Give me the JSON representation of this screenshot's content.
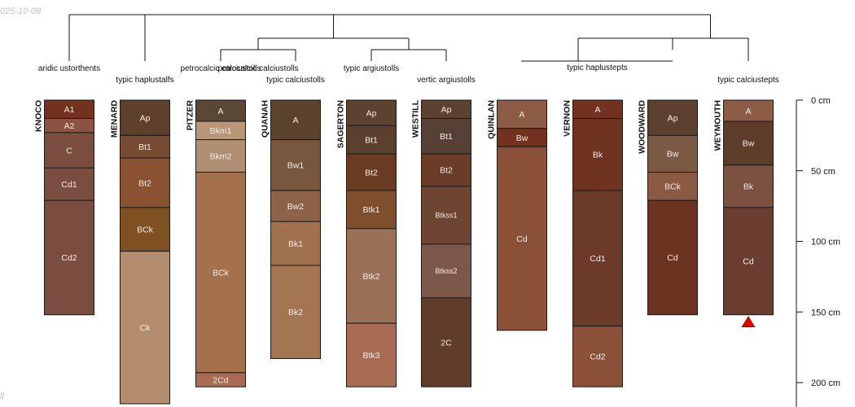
{
  "date_stamp": "025-10-08",
  "corner_text": "ll",
  "chart_data": {
    "type": "soil-profile-sketch",
    "depth_unit": "cm",
    "depth_axis": {
      "ticks": [
        0,
        50,
        100,
        150,
        200
      ],
      "range": [
        0,
        215
      ]
    },
    "profiles": [
      {
        "id": "KNOCO",
        "taxon": "aridic ustorthents",
        "horizons": [
          {
            "name": "A1",
            "top": 0,
            "bottom": 13,
            "color": "#72321f"
          },
          {
            "name": "A2",
            "top": 13,
            "bottom": 23,
            "color": "#8c5343"
          },
          {
            "name": "C",
            "top": 23,
            "bottom": 48,
            "color": "#7b4d40"
          },
          {
            "name": "Cd1",
            "top": 48,
            "bottom": 71,
            "color": "#7b4d40"
          },
          {
            "name": "Cd2",
            "top": 71,
            "bottom": 152,
            "color": "#7b4d40"
          }
        ]
      },
      {
        "id": "MENARD",
        "taxon": "typic haplustalfs",
        "horizons": [
          {
            "name": "Ap",
            "top": 0,
            "bottom": 25,
            "color": "#5f402c"
          },
          {
            "name": "Bt1",
            "top": 25,
            "bottom": 41,
            "color": "#784c33"
          },
          {
            "name": "Bt2",
            "top": 41,
            "bottom": 76,
            "color": "#8a5230"
          },
          {
            "name": "BCk",
            "top": 76,
            "bottom": 107,
            "color": "#7f5122"
          },
          {
            "name": "Ck",
            "top": 107,
            "bottom": 215,
            "color": "#b38d6e"
          }
        ]
      },
      {
        "id": "PITZER",
        "taxon": "petrocalcic calciustolls",
        "horizons": [
          {
            "name": "A",
            "top": 0,
            "bottom": 15,
            "color": "#5b4736"
          },
          {
            "name": "Bkm1",
            "top": 15,
            "bottom": 28,
            "color": "#b8967a"
          },
          {
            "name": "Bkm2",
            "top": 28,
            "bottom": 51,
            "color": "#ae8f74"
          },
          {
            "name": "BCk",
            "top": 51,
            "bottom": 193,
            "color": "#a5704c"
          },
          {
            "name": "2Cd",
            "top": 193,
            "bottom": 203,
            "color": "#a86c55"
          }
        ]
      },
      {
        "id": "QUANAH",
        "taxon": "typic calciustolls",
        "horizons": [
          {
            "name": "A",
            "top": 0,
            "bottom": 28,
            "color": "#5c432e"
          },
          {
            "name": "Bw1",
            "top": 28,
            "bottom": 64,
            "color": "#77573e"
          },
          {
            "name": "Bw2",
            "top": 64,
            "bottom": 86,
            "color": "#8d6248"
          },
          {
            "name": "Bk1",
            "top": 86,
            "bottom": 117,
            "color": "#a0714e"
          },
          {
            "name": "Bk2",
            "top": 117,
            "bottom": 183,
            "color": "#a37550"
          }
        ]
      },
      {
        "id": "SAGERTON",
        "taxon": "typic argiustolls",
        "horizons": [
          {
            "name": "Ap",
            "top": 0,
            "bottom": 18,
            "color": "#5d4232"
          },
          {
            "name": "Bt1",
            "top": 18,
            "bottom": 38,
            "color": "#5b4030"
          },
          {
            "name": "Bt2",
            "top": 38,
            "bottom": 64,
            "color": "#6b3c24"
          },
          {
            "name": "Btk1",
            "top": 64,
            "bottom": 91,
            "color": "#7f4e2d"
          },
          {
            "name": "Btk2",
            "top": 91,
            "bottom": 158,
            "color": "#9b7059"
          },
          {
            "name": "Btk3",
            "top": 158,
            "bottom": 203,
            "color": "#a86c55"
          }
        ]
      },
      {
        "id": "WESTILL",
        "taxon": "vertic argiustolls",
        "horizons": [
          {
            "name": "Ap",
            "top": 0,
            "bottom": 13,
            "color": "#5c4030"
          },
          {
            "name": "Bt1",
            "top": 13,
            "bottom": 38,
            "color": "#574035"
          },
          {
            "name": "Bt2",
            "top": 38,
            "bottom": 61,
            "color": "#6b3c27"
          },
          {
            "name": "Btkss1",
            "top": 61,
            "bottom": 102,
            "color": "#6e4533"
          },
          {
            "name": "Btkss2",
            "top": 102,
            "bottom": 140,
            "color": "#7b584a"
          },
          {
            "name": "2C",
            "top": 140,
            "bottom": 203,
            "color": "#5f3d2a"
          }
        ]
      },
      {
        "id": "QUINLAN",
        "taxon": "",
        "horizons": [
          {
            "name": "A",
            "top": 0,
            "bottom": 20,
            "color": "#8c5c47"
          },
          {
            "name": "Bw",
            "top": 20,
            "bottom": 33,
            "color": "#72321f"
          },
          {
            "name": "Cd",
            "top": 33,
            "bottom": 163,
            "color": "#8b5138"
          }
        ]
      },
      {
        "id": "VERNON",
        "taxon": "typic haplustepts",
        "horizons": [
          {
            "name": "A",
            "top": 0,
            "bottom": 13,
            "color": "#72321f"
          },
          {
            "name": "Bk",
            "top": 13,
            "bottom": 64,
            "color": "#6e3420"
          },
          {
            "name": "Cd1",
            "top": 64,
            "bottom": 160,
            "color": "#6b3a28"
          },
          {
            "name": "Cd2",
            "top": 160,
            "bottom": 203,
            "color": "#8b5138"
          }
        ]
      },
      {
        "id": "WOODWARD",
        "taxon": "",
        "horizons": [
          {
            "name": "Ap",
            "top": 0,
            "bottom": 25,
            "color": "#5d4030"
          },
          {
            "name": "Bw",
            "top": 25,
            "bottom": 51,
            "color": "#7b5a46"
          },
          {
            "name": "BCk",
            "top": 51,
            "bottom": 71,
            "color": "#8a5a44"
          },
          {
            "name": "Cd",
            "top": 71,
            "bottom": 152,
            "color": "#6b3420"
          }
        ]
      },
      {
        "id": "WEYMOUTH",
        "taxon": "typic calciustepts",
        "horizons": [
          {
            "name": "A",
            "top": 0,
            "bottom": 15,
            "color": "#8c5c47"
          },
          {
            "name": "Bw",
            "top": 15,
            "bottom": 46,
            "color": "#5e3c2a"
          },
          {
            "name": "Bk",
            "top": 46,
            "bottom": 76,
            "color": "#7c5140"
          },
          {
            "name": "Cd",
            "top": 76,
            "bottom": 152,
            "color": "#6b3c30"
          }
        ]
      }
    ],
    "taxon_groups": [
      {
        "label": "petrocalcic calciustolls",
        "profiles": [
          "PITZER",
          "QUANAH"
        ]
      },
      {
        "label": "typic haplustepts",
        "profiles": [
          "QUINLAN",
          "VERNON",
          "WOODWARD"
        ]
      }
    ],
    "dendrogram": {
      "groups": [
        {
          "members": [
            0,
            1
          ]
        },
        {
          "members": [
            2,
            3
          ]
        },
        {
          "members": [
            4,
            5
          ]
        },
        {
          "members": [
            8,
            9
          ]
        }
      ],
      "root_children": [
        "g0",
        "mid",
        "right"
      ],
      "mid_children": [
        "g1",
        "g2"
      ],
      "right_children": [
        "g3",
        "p7"
      ]
    },
    "markers": [
      {
        "profile": "WEYMOUTH",
        "type": "triangle",
        "color": "#e00000"
      }
    ]
  }
}
